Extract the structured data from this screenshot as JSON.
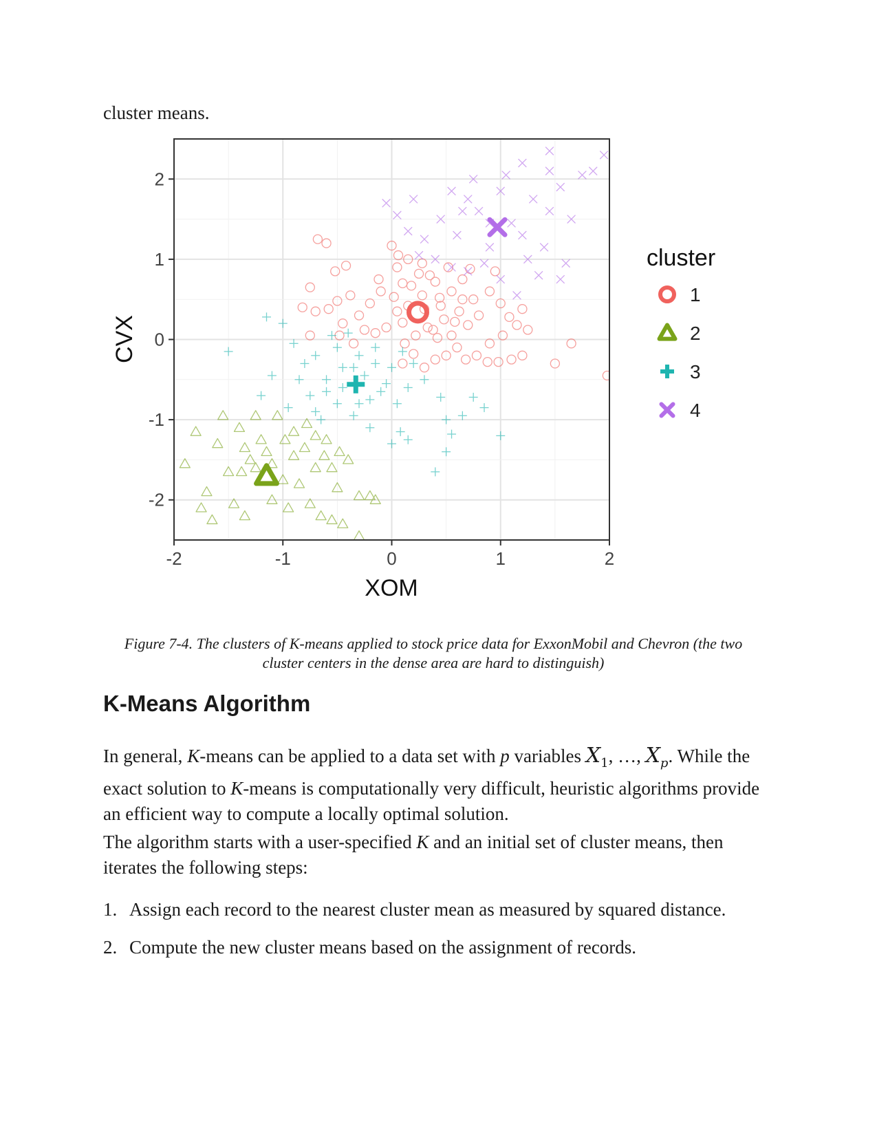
{
  "lead_text": "cluster means.",
  "chart_data": {
    "type": "scatter",
    "xlabel": "XOM",
    "ylabel": "CVX",
    "xlim": [
      -2,
      2
    ],
    "ylim": [
      -2.5,
      2.5
    ],
    "xticks": [
      "-2",
      "-1",
      "0",
      "1",
      "2"
    ],
    "yticks": [
      "-2",
      "-1",
      "0",
      "1",
      "2"
    ],
    "grid": true,
    "legend": {
      "title": "cluster",
      "placement": "right",
      "entries": [
        "1",
        "2",
        "3",
        "4"
      ]
    },
    "colors": {
      "1": "#f0625d",
      "2": "#7aa31a",
      "3": "#1fb5b0",
      "4": "#b36ee8"
    },
    "markers": {
      "1": "circle",
      "2": "triangle",
      "3": "plus",
      "4": "cross"
    },
    "centers": [
      {
        "cluster": "1",
        "x": 0.24,
        "y": 0.34
      },
      {
        "cluster": "2",
        "x": -1.15,
        "y": -1.7
      },
      {
        "cluster": "3",
        "x": -0.33,
        "y": -0.56
      },
      {
        "cluster": "4",
        "x": 0.97,
        "y": 1.4
      }
    ],
    "points": {
      "1": [
        [
          0.02,
          0.53
        ],
        [
          0.1,
          0.21
        ],
        [
          0.18,
          0.67
        ],
        [
          0.3,
          0.38
        ],
        [
          0.38,
          0.12
        ],
        [
          0.44,
          0.52
        ],
        [
          0.12,
          -0.05
        ],
        [
          0.22,
          0.05
        ],
        [
          0.35,
          0.8
        ],
        [
          0.48,
          0.25
        ],
        [
          0.55,
          0.6
        ],
        [
          0.62,
          0.35
        ],
        [
          0.7,
          0.18
        ],
        [
          0.05,
          0.9
        ],
        [
          -0.12,
          0.75
        ],
        [
          -0.2,
          0.45
        ],
        [
          -0.3,
          0.3
        ],
        [
          -0.38,
          0.55
        ],
        [
          -0.45,
          0.2
        ],
        [
          -0.5,
          0.48
        ],
        [
          -0.52,
          0.85
        ],
        [
          -0.6,
          1.2
        ],
        [
          -0.68,
          1.25
        ],
        [
          -0.75,
          0.65
        ],
        [
          -0.42,
          0.92
        ],
        [
          0.0,
          1.17
        ],
        [
          0.06,
          1.05
        ],
        [
          0.15,
          1.0
        ],
        [
          0.28,
          0.95
        ],
        [
          0.4,
          0.72
        ],
        [
          0.52,
          0.9
        ],
        [
          0.65,
          0.75
        ],
        [
          0.75,
          0.5
        ],
        [
          0.8,
          0.3
        ],
        [
          0.9,
          0.6
        ],
        [
          1.0,
          0.45
        ],
        [
          1.08,
          0.28
        ],
        [
          1.15,
          0.18
        ],
        [
          1.2,
          0.38
        ],
        [
          1.25,
          0.12
        ],
        [
          0.9,
          -0.05
        ],
        [
          0.88,
          -0.28
        ],
        [
          0.78,
          -0.2
        ],
        [
          0.6,
          -0.1
        ],
        [
          0.5,
          -0.2
        ],
        [
          0.4,
          -0.25
        ],
        [
          0.3,
          -0.35
        ],
        [
          0.2,
          -0.18
        ],
        [
          0.1,
          -0.3
        ],
        [
          0.55,
          0.05
        ],
        [
          -0.05,
          0.15
        ],
        [
          -0.15,
          0.08
        ],
        [
          -0.25,
          0.12
        ],
        [
          -0.35,
          -0.05
        ],
        [
          -0.48,
          0.05
        ],
        [
          -0.58,
          0.38
        ],
        [
          -0.7,
          0.35
        ],
        [
          -0.75,
          0.05
        ],
        [
          -0.82,
          0.4
        ],
        [
          0.28,
          0.55
        ],
        [
          0.33,
          0.15
        ],
        [
          0.45,
          0.42
        ],
        [
          0.15,
          0.42
        ],
        [
          0.65,
          0.5
        ],
        [
          0.05,
          0.35
        ],
        [
          0.72,
          0.88
        ],
        [
          0.95,
          0.85
        ],
        [
          1.02,
          0.05
        ],
        [
          0.68,
          -0.25
        ],
        [
          1.5,
          -0.3
        ],
        [
          1.65,
          -0.05
        ],
        [
          1.98,
          -0.45
        ],
        [
          1.2,
          -0.2
        ],
        [
          1.1,
          -0.25
        ],
        [
          0.98,
          -0.28
        ],
        [
          0.1,
          0.7
        ],
        [
          -0.1,
          0.6
        ],
        [
          0.25,
          0.82
        ],
        [
          0.42,
          0.02
        ],
        [
          0.58,
          0.22
        ]
      ],
      "2": [
        [
          -1.2,
          -1.25
        ],
        [
          -1.3,
          -1.5
        ],
        [
          -1.1,
          -1.55
        ],
        [
          -1.0,
          -1.75
        ],
        [
          -0.9,
          -1.45
        ],
        [
          -0.8,
          -1.35
        ],
        [
          -0.7,
          -1.6
        ],
        [
          -0.6,
          -1.25
        ],
        [
          -0.5,
          -1.85
        ],
        [
          -0.4,
          -1.5
        ],
        [
          -0.3,
          -1.95
        ],
        [
          -1.4,
          -1.1
        ],
        [
          -1.5,
          -1.65
        ],
        [
          -1.6,
          -1.3
        ],
        [
          -1.7,
          -1.9
        ],
        [
          -1.8,
          -1.15
        ],
        [
          -1.9,
          -1.55
        ],
        [
          -1.75,
          -2.1
        ],
        [
          -1.65,
          -2.25
        ],
        [
          -1.45,
          -2.05
        ],
        [
          -1.35,
          -2.2
        ],
        [
          -1.1,
          -2.0
        ],
        [
          -0.95,
          -2.1
        ],
        [
          -0.75,
          -2.05
        ],
        [
          -0.65,
          -2.2
        ],
        [
          -0.55,
          -2.25
        ],
        [
          -0.45,
          -2.3
        ],
        [
          -0.3,
          -2.45
        ],
        [
          -0.2,
          -1.95
        ],
        [
          -0.15,
          -2.0
        ],
        [
          -1.25,
          -0.95
        ],
        [
          -1.05,
          -0.95
        ],
        [
          -0.9,
          -1.15
        ],
        [
          -0.78,
          -1.05
        ],
        [
          -1.35,
          -1.35
        ],
        [
          -1.15,
          -1.4
        ],
        [
          -0.85,
          -1.8
        ],
        [
          -1.55,
          -0.95
        ],
        [
          -1.38,
          -1.65
        ],
        [
          -0.98,
          -1.25
        ],
        [
          -0.62,
          -1.45
        ],
        [
          -0.55,
          -1.6
        ],
        [
          -1.25,
          -1.6
        ],
        [
          -0.48,
          -1.4
        ],
        [
          -0.7,
          -1.2
        ]
      ],
      "3": [
        [
          -0.3,
          -0.2
        ],
        [
          -0.15,
          -0.1
        ],
        [
          0.0,
          -0.35
        ],
        [
          0.15,
          -0.6
        ],
        [
          -0.45,
          -0.35
        ],
        [
          -0.6,
          -0.5
        ],
        [
          -0.75,
          -0.7
        ],
        [
          -0.85,
          -0.5
        ],
        [
          -0.95,
          -0.85
        ],
        [
          -1.1,
          -0.45
        ],
        [
          -1.2,
          -0.7
        ],
        [
          -1.5,
          -0.15
        ],
        [
          -1.0,
          0.2
        ],
        [
          -1.15,
          0.28
        ],
        [
          -0.7,
          -0.2
        ],
        [
          -0.5,
          -0.1
        ],
        [
          -0.25,
          -0.45
        ],
        [
          -0.1,
          -0.65
        ],
        [
          0.05,
          -0.8
        ],
        [
          0.2,
          -0.3
        ],
        [
          0.3,
          -0.5
        ],
        [
          0.45,
          -0.72
        ],
        [
          0.5,
          -1.0
        ],
        [
          0.55,
          -1.18
        ],
        [
          0.65,
          -0.95
        ],
        [
          0.75,
          -0.72
        ],
        [
          0.85,
          -0.85
        ],
        [
          1.0,
          -1.2
        ],
        [
          0.4,
          -1.65
        ],
        [
          0.5,
          -1.4
        ],
        [
          0.15,
          -1.25
        ],
        [
          0.0,
          -1.3
        ],
        [
          -0.2,
          -1.1
        ],
        [
          -0.35,
          -0.95
        ],
        [
          -0.5,
          -0.8
        ],
        [
          -0.65,
          -1.0
        ],
        [
          -0.8,
          -0.3
        ],
        [
          -0.9,
          -0.05
        ],
        [
          -0.55,
          0.05
        ],
        [
          -0.4,
          0.08
        ],
        [
          -0.2,
          -0.75
        ],
        [
          -0.05,
          -0.55
        ],
        [
          0.1,
          -0.15
        ],
        [
          -0.6,
          -0.65
        ],
        [
          -0.45,
          -0.6
        ],
        [
          -0.3,
          -0.8
        ],
        [
          -0.15,
          -0.3
        ],
        [
          0.08,
          -1.15
        ],
        [
          -0.7,
          -0.9
        ],
        [
          -0.35,
          -0.35
        ]
      ],
      "4": [
        [
          0.3,
          1.25
        ],
        [
          0.45,
          1.5
        ],
        [
          0.6,
          1.3
        ],
        [
          0.7,
          1.75
        ],
        [
          0.8,
          1.6
        ],
        [
          0.9,
          1.15
        ],
        [
          1.0,
          1.85
        ],
        [
          1.1,
          1.45
        ],
        [
          1.2,
          1.3
        ],
        [
          1.3,
          1.75
        ],
        [
          1.45,
          1.6
        ],
        [
          1.55,
          1.9
        ],
        [
          1.65,
          1.5
        ],
        [
          1.75,
          2.05
        ],
        [
          1.85,
          2.1
        ],
        [
          1.95,
          2.3
        ],
        [
          1.45,
          2.1
        ],
        [
          1.05,
          2.05
        ],
        [
          0.75,
          2.0
        ],
        [
          0.55,
          1.85
        ],
        [
          0.4,
          1.0
        ],
        [
          0.55,
          0.9
        ],
        [
          0.7,
          0.85
        ],
        [
          0.85,
          0.95
        ],
        [
          1.0,
          0.75
        ],
        [
          1.15,
          0.55
        ],
        [
          1.35,
          0.8
        ],
        [
          1.4,
          1.15
        ],
        [
          1.6,
          0.95
        ],
        [
          1.55,
          0.75
        ],
        [
          0.2,
          1.75
        ],
        [
          0.05,
          1.55
        ],
        [
          -0.05,
          1.7
        ],
        [
          0.15,
          1.35
        ],
        [
          0.25,
          1.05
        ],
        [
          1.2,
          2.2
        ],
        [
          1.45,
          2.35
        ],
        [
          0.65,
          1.6
        ],
        [
          0.9,
          1.45
        ],
        [
          1.25,
          1.0
        ]
      ]
    }
  },
  "caption": "Figure 7-4. The clusters of K-means applied to stock price data for ExxonMobil and Chevron (the two cluster centers in the dense area are hard to distinguish)",
  "heading": "K-Means Algorithm",
  "para1": {
    "t1": "In general, ",
    "k1": "K",
    "t2": "-means can be applied to a data set with ",
    "p": "p",
    "t3": " variables ",
    "var_a": "X",
    "sub_a": "1",
    "sep": ", …, ",
    "var_b": "X",
    "sub_b": "p",
    "t4": ". While the exact solution to ",
    "k2": "K",
    "t5": "-means is computationally very difficult, heuristic algorithms provide an efficient way to compute a locally optimal solution."
  },
  "para2": {
    "t1": "The algorithm starts with a user-specified ",
    "k": "K",
    "t2": " and an initial set of cluster means, then iterates the following steps:"
  },
  "steps": [
    {
      "num": "1.",
      "text": "Assign each record to the nearest cluster mean as measured by squared distance."
    },
    {
      "num": "2.",
      "text": "Compute the new cluster means based on the assignment of records."
    }
  ]
}
